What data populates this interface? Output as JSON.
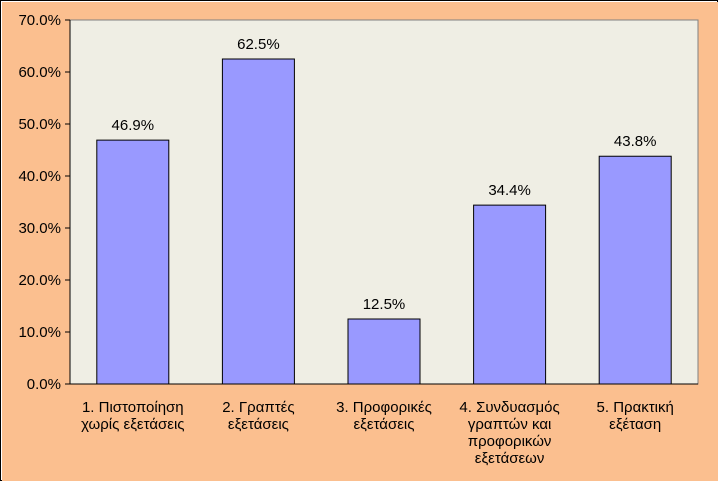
{
  "chart_data": {
    "type": "bar",
    "categories": [
      [
        "1. Πιστοποίηση",
        "χωρίς εξετάσεις"
      ],
      [
        "2. Γραπτές",
        "εξετάσεις"
      ],
      [
        "3. Προφορικές",
        "εξετάσεις"
      ],
      [
        "4. Συνδυασμός",
        "γραπτών και",
        "προφορικών",
        "εξετάσεων"
      ],
      [
        "5. Πρακτική",
        "εξέταση"
      ]
    ],
    "values": [
      46.9,
      62.5,
      12.5,
      34.4,
      43.8
    ],
    "value_labels": [
      "46.9%",
      "62.5%",
      "12.5%",
      "34.4%",
      "43.8%"
    ],
    "y_ticks": [
      "0.0%",
      "10.0%",
      "20.0%",
      "30.0%",
      "40.0%",
      "50.0%",
      "60.0%",
      "70.0%"
    ],
    "ylim": [
      0,
      70
    ],
    "grid": false,
    "legend": "none",
    "title": "",
    "xlabel": "",
    "ylabel": ""
  },
  "colors": {
    "background": "#FBBF8F",
    "plot_area": "#EFEEE4",
    "bar_fill": "#9999FF",
    "bar_stroke": "#000000"
  }
}
